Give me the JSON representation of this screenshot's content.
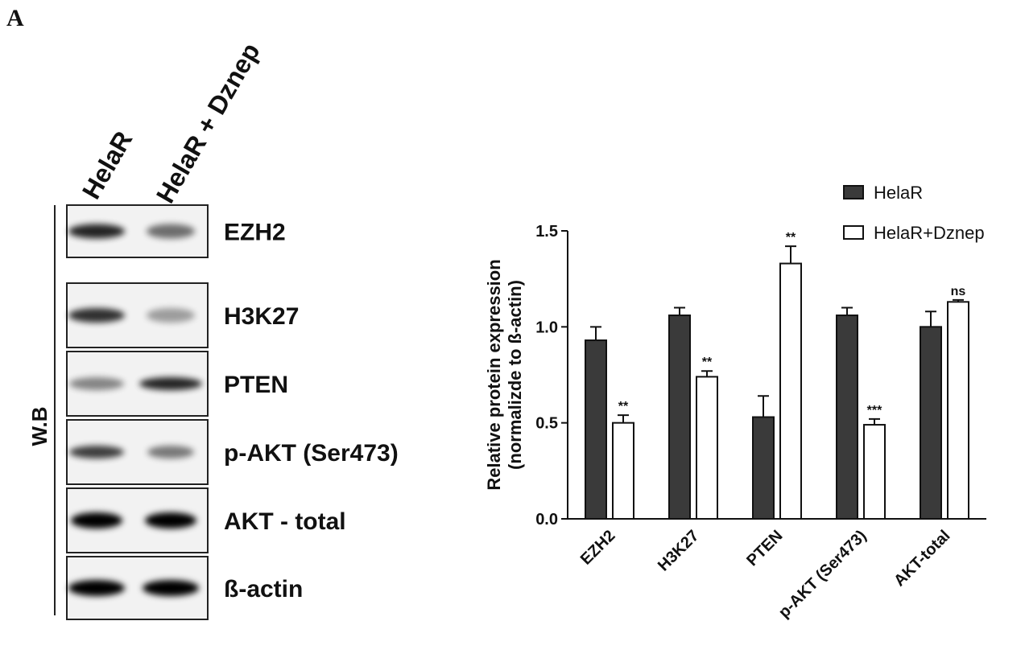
{
  "panel_label": "A",
  "blot": {
    "lanes": [
      "HelaR",
      "HelaR + Dznep"
    ],
    "rows": [
      "EZH2",
      "H3K27",
      "PTEN",
      "p-AKT (Ser473)",
      "AKT - total",
      "ß-actin"
    ],
    "side_label": "W.B"
  },
  "chart_data": {
    "type": "bar",
    "ylabel": [
      "Relative protein expression",
      "(normalizde to ß-actin)"
    ],
    "categories": [
      "EZH2",
      "H3K27",
      "PTEN",
      "p-AKT (Ser473)",
      "AKT-total"
    ],
    "series": [
      {
        "name": "HelaR",
        "color": "#3a3a3a",
        "values": [
          0.93,
          1.06,
          0.53,
          1.06,
          1.0
        ],
        "errors": [
          0.07,
          0.04,
          0.11,
          0.04,
          0.08
        ]
      },
      {
        "name": "HelaR+Dznep",
        "color": "#ffffff",
        "values": [
          0.5,
          0.74,
          1.33,
          0.49,
          1.13
        ],
        "errors": [
          0.04,
          0.03,
          0.09,
          0.03,
          0.01
        ],
        "annotations": [
          "**",
          "**",
          "**",
          "***",
          "ns"
        ]
      }
    ],
    "ylim": [
      0,
      1.5
    ],
    "yticks": [
      {
        "value": 0,
        "label": "0.0"
      },
      0.5,
      {
        "value": 1,
        "label": "1.0"
      },
      {
        "value": 1.5,
        "label": "1.5"
      }
    ]
  }
}
